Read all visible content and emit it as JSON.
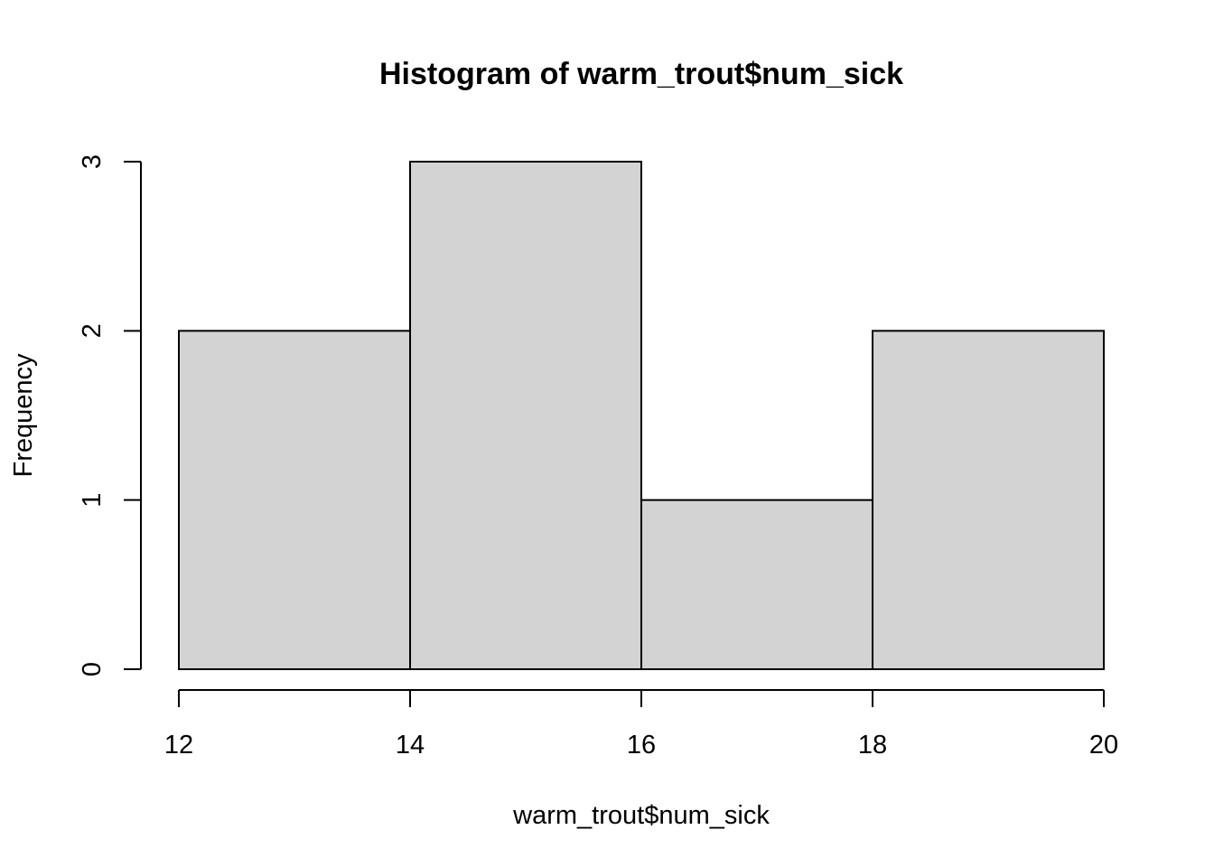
{
  "chart_data": {
    "type": "histogram",
    "title": "Histogram of warm_trout$num_sick",
    "xlabel": "warm_trout$num_sick",
    "ylabel": "Frequency",
    "bins": [
      {
        "start": 12,
        "end": 14,
        "count": 2
      },
      {
        "start": 14,
        "end": 16,
        "count": 3
      },
      {
        "start": 16,
        "end": 18,
        "count": 1
      },
      {
        "start": 18,
        "end": 20,
        "count": 2
      }
    ],
    "x_ticks": [
      12,
      14,
      16,
      18,
      20
    ],
    "y_ticks": [
      0,
      1,
      2,
      3
    ],
    "xlim": [
      12,
      20
    ],
    "ylim": [
      0,
      3
    ],
    "bar_color": "#d3d3d3",
    "grid": false,
    "legend": "none"
  }
}
